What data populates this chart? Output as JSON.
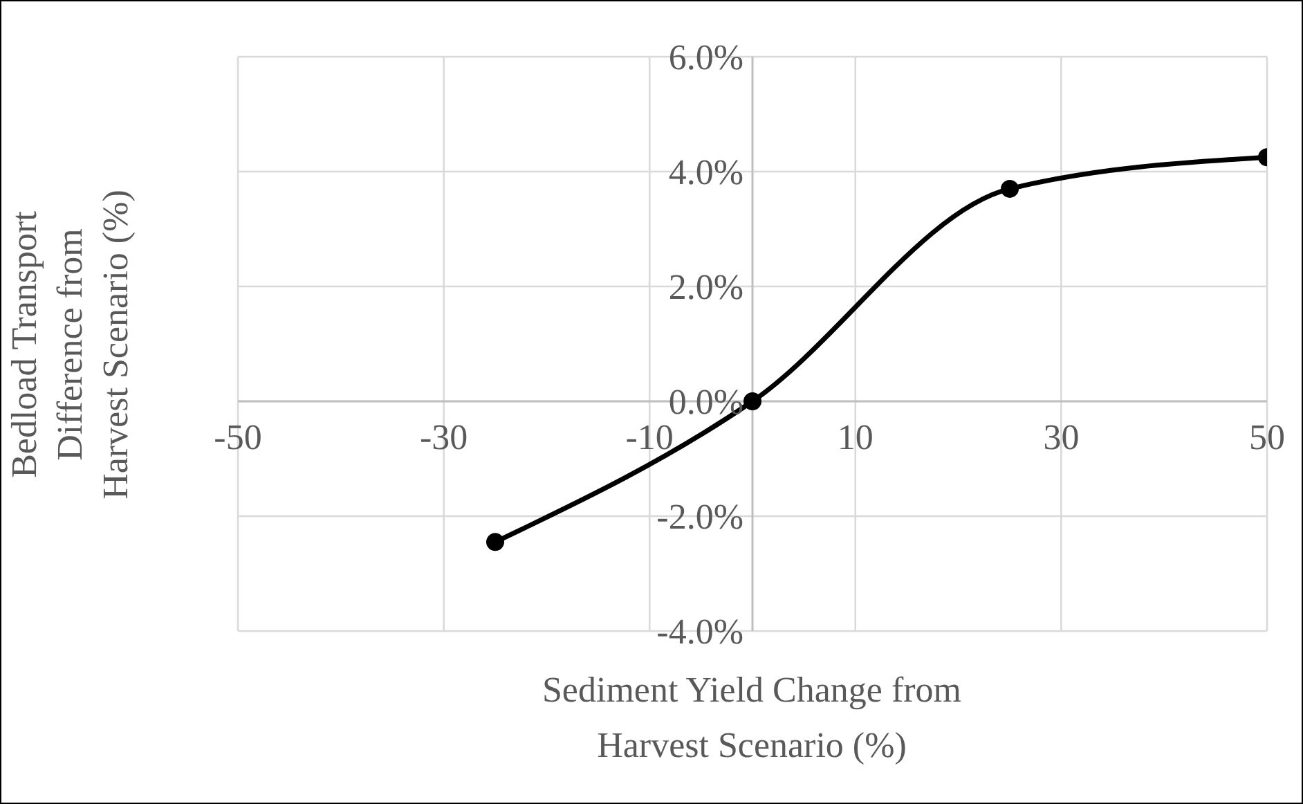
{
  "chart_data": {
    "type": "line",
    "xlabel": "Sediment Yield Change from\nHarvest Scenario (%)",
    "ylabel": "Bedload Transport\nDifference from\nHarvest Scenario (%)",
    "x": [
      -25,
      0,
      25,
      50
    ],
    "series": [
      {
        "color": "#000000",
        "values": [
          -2.45,
          0,
          3.7,
          4.25
        ]
      }
    ],
    "xlim": [
      -50,
      50
    ],
    "xticks": [
      -50,
      -30,
      -10,
      10,
      30,
      50
    ],
    "ylim": [
      -4,
      6
    ],
    "yticks": [
      {
        "value": -4,
        "label": "-4.0%"
      },
      {
        "value": -2,
        "label": "-2.0%"
      },
      {
        "value": 0,
        "label": "0.0%"
      },
      {
        "value": 2,
        "label": "2.0%"
      },
      {
        "value": 4,
        "label": "4.0%"
      },
      {
        "value": 6,
        "label": "6.0%"
      }
    ],
    "grid": true,
    "legend": false,
    "marker": "circle",
    "line_style": "solid"
  }
}
